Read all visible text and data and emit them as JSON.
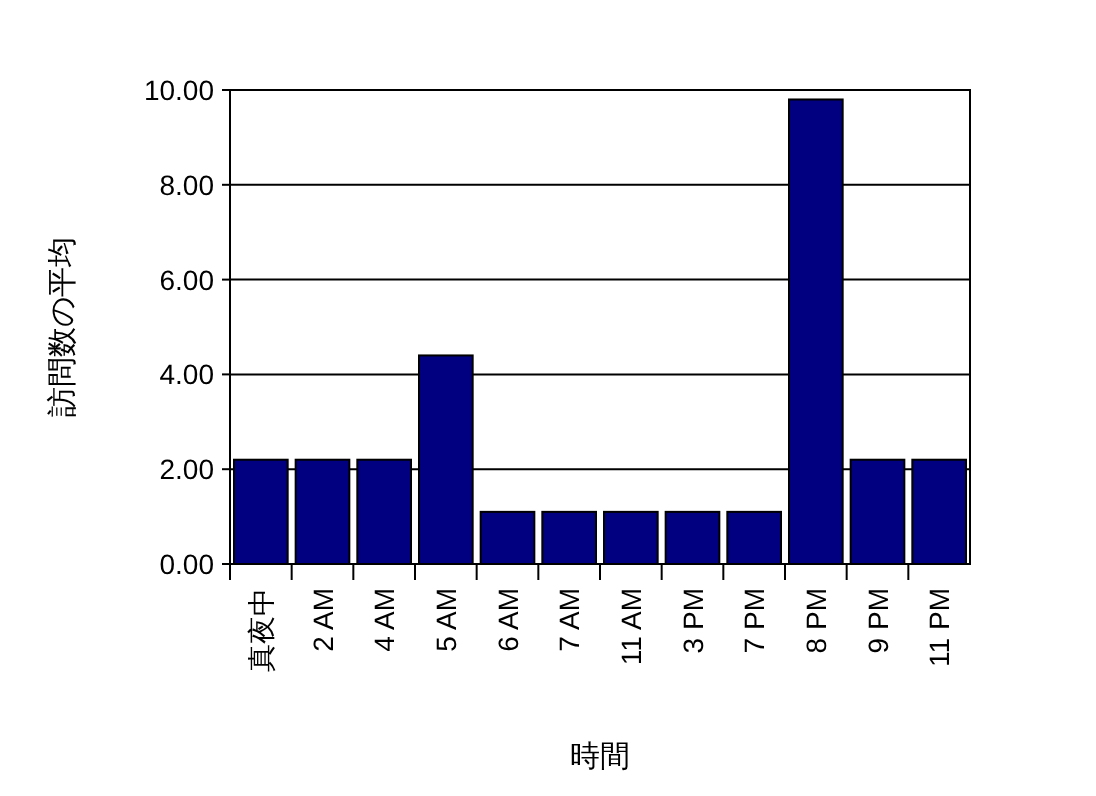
{
  "chart_data": {
    "type": "bar",
    "xlabel": "時間",
    "ylabel": "訪問数の平均",
    "categories": [
      "真夜中",
      "2 AM",
      "4 AM",
      "5 AM",
      "6 AM",
      "7 AM",
      "11 AM",
      "3 PM",
      "7 PM",
      "8 PM",
      "9 PM",
      "11 PM"
    ],
    "values": [
      2.2,
      2.2,
      2.2,
      4.4,
      1.1,
      1.1,
      1.1,
      1.1,
      1.1,
      9.8,
      2.2,
      2.2
    ],
    "color": "#000080",
    "ylim": [
      0,
      10
    ],
    "yticks": [
      {
        "value": 0,
        "label": "0.00"
      },
      {
        "value": 2,
        "label": "2.00"
      },
      {
        "value": 4,
        "label": "4.00"
      },
      {
        "value": 6,
        "label": "6.00"
      },
      {
        "value": 8,
        "label": "8.00"
      },
      {
        "value": 10,
        "label": "10.00"
      }
    ],
    "grid": "y"
  }
}
